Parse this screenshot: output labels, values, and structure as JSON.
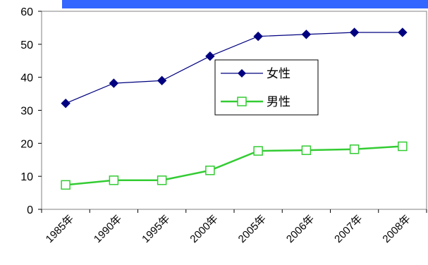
{
  "chart_data": {
    "type": "line",
    "categories": [
      "1985年",
      "1990年",
      "1995年",
      "2000年",
      "2005年",
      "2006年",
      "2007年",
      "2008年"
    ],
    "series": [
      {
        "name": "女性",
        "values": [
          32.1,
          38.2,
          39.0,
          46.4,
          52.4,
          53.0,
          53.6,
          53.6
        ],
        "color": "#000080",
        "marker": "diamond-filled"
      },
      {
        "name": "男性",
        "values": [
          7.4,
          8.8,
          8.8,
          11.8,
          17.7,
          17.9,
          18.2,
          19.1
        ],
        "color": "#33cc33",
        "marker": "square-open"
      }
    ],
    "yticks": [
      "0",
      "10",
      "20",
      "30",
      "40",
      "50",
      "60"
    ],
    "ylim": [
      0,
      60
    ],
    "grid": false,
    "legend_position": "center-right",
    "header_band_color": "#3366ff"
  }
}
